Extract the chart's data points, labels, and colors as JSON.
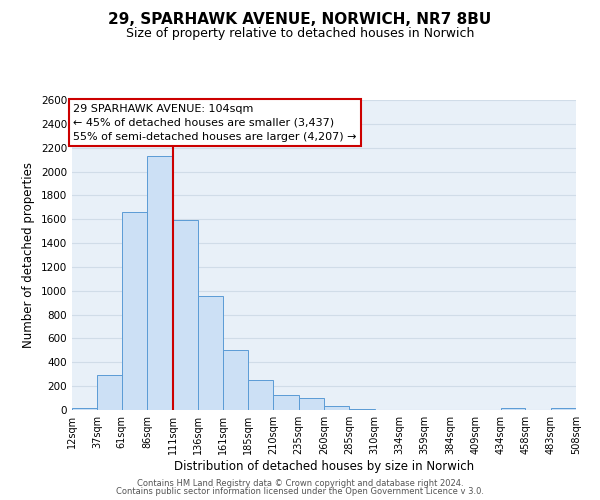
{
  "title": "29, SPARHAWK AVENUE, NORWICH, NR7 8BU",
  "subtitle": "Size of property relative to detached houses in Norwich",
  "xlabel": "Distribution of detached houses by size in Norwich",
  "ylabel": "Number of detached properties",
  "bin_edges": [
    12,
    37,
    61,
    86,
    111,
    136,
    161,
    185,
    210,
    235,
    260,
    285,
    310,
    334,
    359,
    384,
    409,
    434,
    458,
    483,
    508
  ],
  "bin_labels": [
    "12sqm",
    "37sqm",
    "61sqm",
    "86sqm",
    "111sqm",
    "136sqm",
    "161sqm",
    "185sqm",
    "210sqm",
    "235sqm",
    "260sqm",
    "285sqm",
    "310sqm",
    "334sqm",
    "359sqm",
    "384sqm",
    "409sqm",
    "434sqm",
    "458sqm",
    "483sqm",
    "508sqm"
  ],
  "counts": [
    20,
    295,
    1660,
    2130,
    1590,
    960,
    505,
    250,
    125,
    100,
    35,
    10,
    0,
    0,
    0,
    0,
    0,
    15,
    0,
    15
  ],
  "bar_color": "#cce0f5",
  "bar_edge_color": "#5b9bd5",
  "vline_x": 111,
  "vline_color": "#cc0000",
  "annotation_line1": "29 SPARHAWK AVENUE: 104sqm",
  "annotation_line2": "← 45% of detached houses are smaller (3,437)",
  "annotation_line3": "55% of semi-detached houses are larger (4,207) →",
  "annotation_box_facecolor": "#ffffff",
  "annotation_box_edgecolor": "#cc0000",
  "ylim": [
    0,
    2600
  ],
  "yticks": [
    0,
    200,
    400,
    600,
    800,
    1000,
    1200,
    1400,
    1600,
    1800,
    2000,
    2200,
    2400,
    2600
  ],
  "grid_color": "#d0dce8",
  "plot_bg_color": "#e8f0f8",
  "footer1": "Contains HM Land Registry data © Crown copyright and database right 2024.",
  "footer2": "Contains public sector information licensed under the Open Government Licence v 3.0."
}
